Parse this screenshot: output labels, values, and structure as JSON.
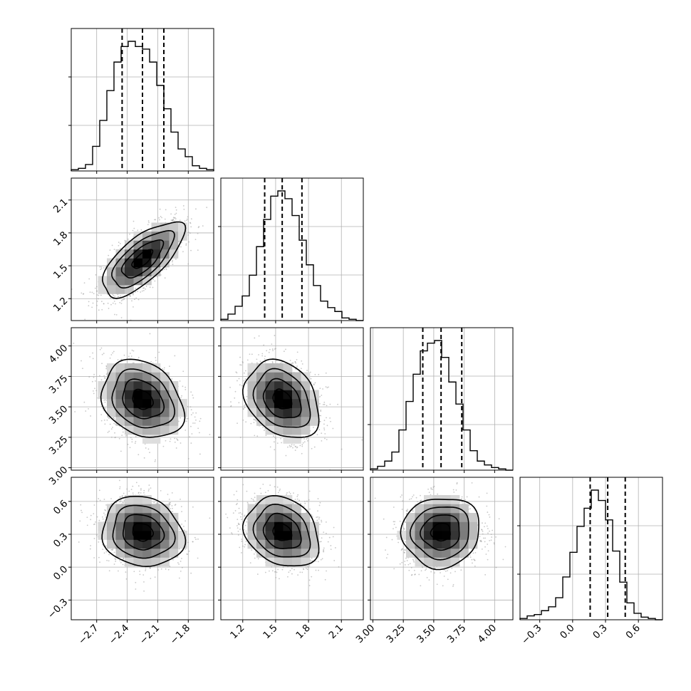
{
  "chart_data": {
    "type": "corner",
    "parameters": [
      {
        "range": [
          -2.95,
          -1.55
        ],
        "ticks": [
          -2.7,
          -2.4,
          -2.1,
          -1.8
        ],
        "tick_labels": [
          "−2.7",
          "−2.4",
          "−2.1",
          "−1.8"
        ],
        "quantiles": [
          -2.45,
          -2.25,
          -2.04
        ],
        "median": -2.25,
        "sigma": 0.2
      },
      {
        "range": [
          1.0,
          2.3
        ],
        "ticks": [
          1.2,
          1.5,
          1.8,
          2.1
        ],
        "tick_labels": [
          "1.2",
          "1.5",
          "1.8",
          "2.1"
        ],
        "quantiles": [
          1.4,
          1.56,
          1.74
        ],
        "median": 1.56,
        "sigma": 0.17
      },
      {
        "range": [
          2.98,
          4.15
        ],
        "ticks": [
          3.0,
          3.25,
          3.5,
          3.75,
          4.0
        ],
        "tick_labels": [
          "3.00",
          "3.25",
          "3.50",
          "3.75",
          "4.00"
        ],
        "quantiles": [
          3.41,
          3.56,
          3.73
        ],
        "median": 3.56,
        "sigma": 0.16
      },
      {
        "range": [
          -0.48,
          0.82
        ],
        "ticks": [
          -0.3,
          0.0,
          0.3,
          0.6
        ],
        "tick_labels": [
          "−0.3",
          "0.0",
          "0.3",
          "0.6"
        ],
        "quantiles": [
          0.16,
          0.32,
          0.48
        ],
        "median": 0.32,
        "sigma": 0.16
      }
    ],
    "histograms": [
      {
        "bins": 20,
        "counts": [
          0.01,
          0.02,
          0.05,
          0.19,
          0.39,
          0.62,
          0.84,
          0.96,
          1.0,
          0.96,
          0.94,
          0.84,
          0.66,
          0.48,
          0.3,
          0.17,
          0.11,
          0.04,
          0.02,
          0.01
        ]
      },
      {
        "bins": 20,
        "counts": [
          0.01,
          0.05,
          0.11,
          0.19,
          0.35,
          0.57,
          0.78,
          0.96,
          1.0,
          0.94,
          0.81,
          0.62,
          0.43,
          0.27,
          0.15,
          0.1,
          0.07,
          0.02,
          0.01,
          0.0
        ]
      },
      {
        "bins": 20,
        "counts": [
          0.01,
          0.03,
          0.07,
          0.14,
          0.31,
          0.53,
          0.74,
          0.92,
          0.98,
          1.0,
          0.87,
          0.68,
          0.51,
          0.31,
          0.15,
          0.07,
          0.04,
          0.02,
          0.01,
          0.0
        ]
      },
      {
        "bins": 20,
        "counts": [
          0.01,
          0.03,
          0.04,
          0.07,
          0.1,
          0.17,
          0.33,
          0.52,
          0.72,
          0.86,
          1.0,
          0.92,
          0.77,
          0.53,
          0.29,
          0.13,
          0.05,
          0.02,
          0.01,
          0.0
        ]
      }
    ],
    "correlations": [
      {
        "x": 0,
        "y": 1,
        "rho": 0.7
      },
      {
        "x": 0,
        "y": 2,
        "rho": -0.25
      },
      {
        "x": 1,
        "y": 2,
        "rho": -0.28
      },
      {
        "x": 0,
        "y": 3,
        "rho": -0.12
      },
      {
        "x": 1,
        "y": 3,
        "rho": -0.22
      },
      {
        "x": 2,
        "y": 3,
        "rho": 0.05
      }
    ],
    "contour_levels_sigma": [
      0.5,
      1.0,
      1.5,
      2.0
    ],
    "axis_labels": [],
    "grid": true,
    "colors": {
      "hist": "#000000",
      "contour": "#000000",
      "density": "#000000",
      "grid": "#b0b0b0"
    }
  }
}
